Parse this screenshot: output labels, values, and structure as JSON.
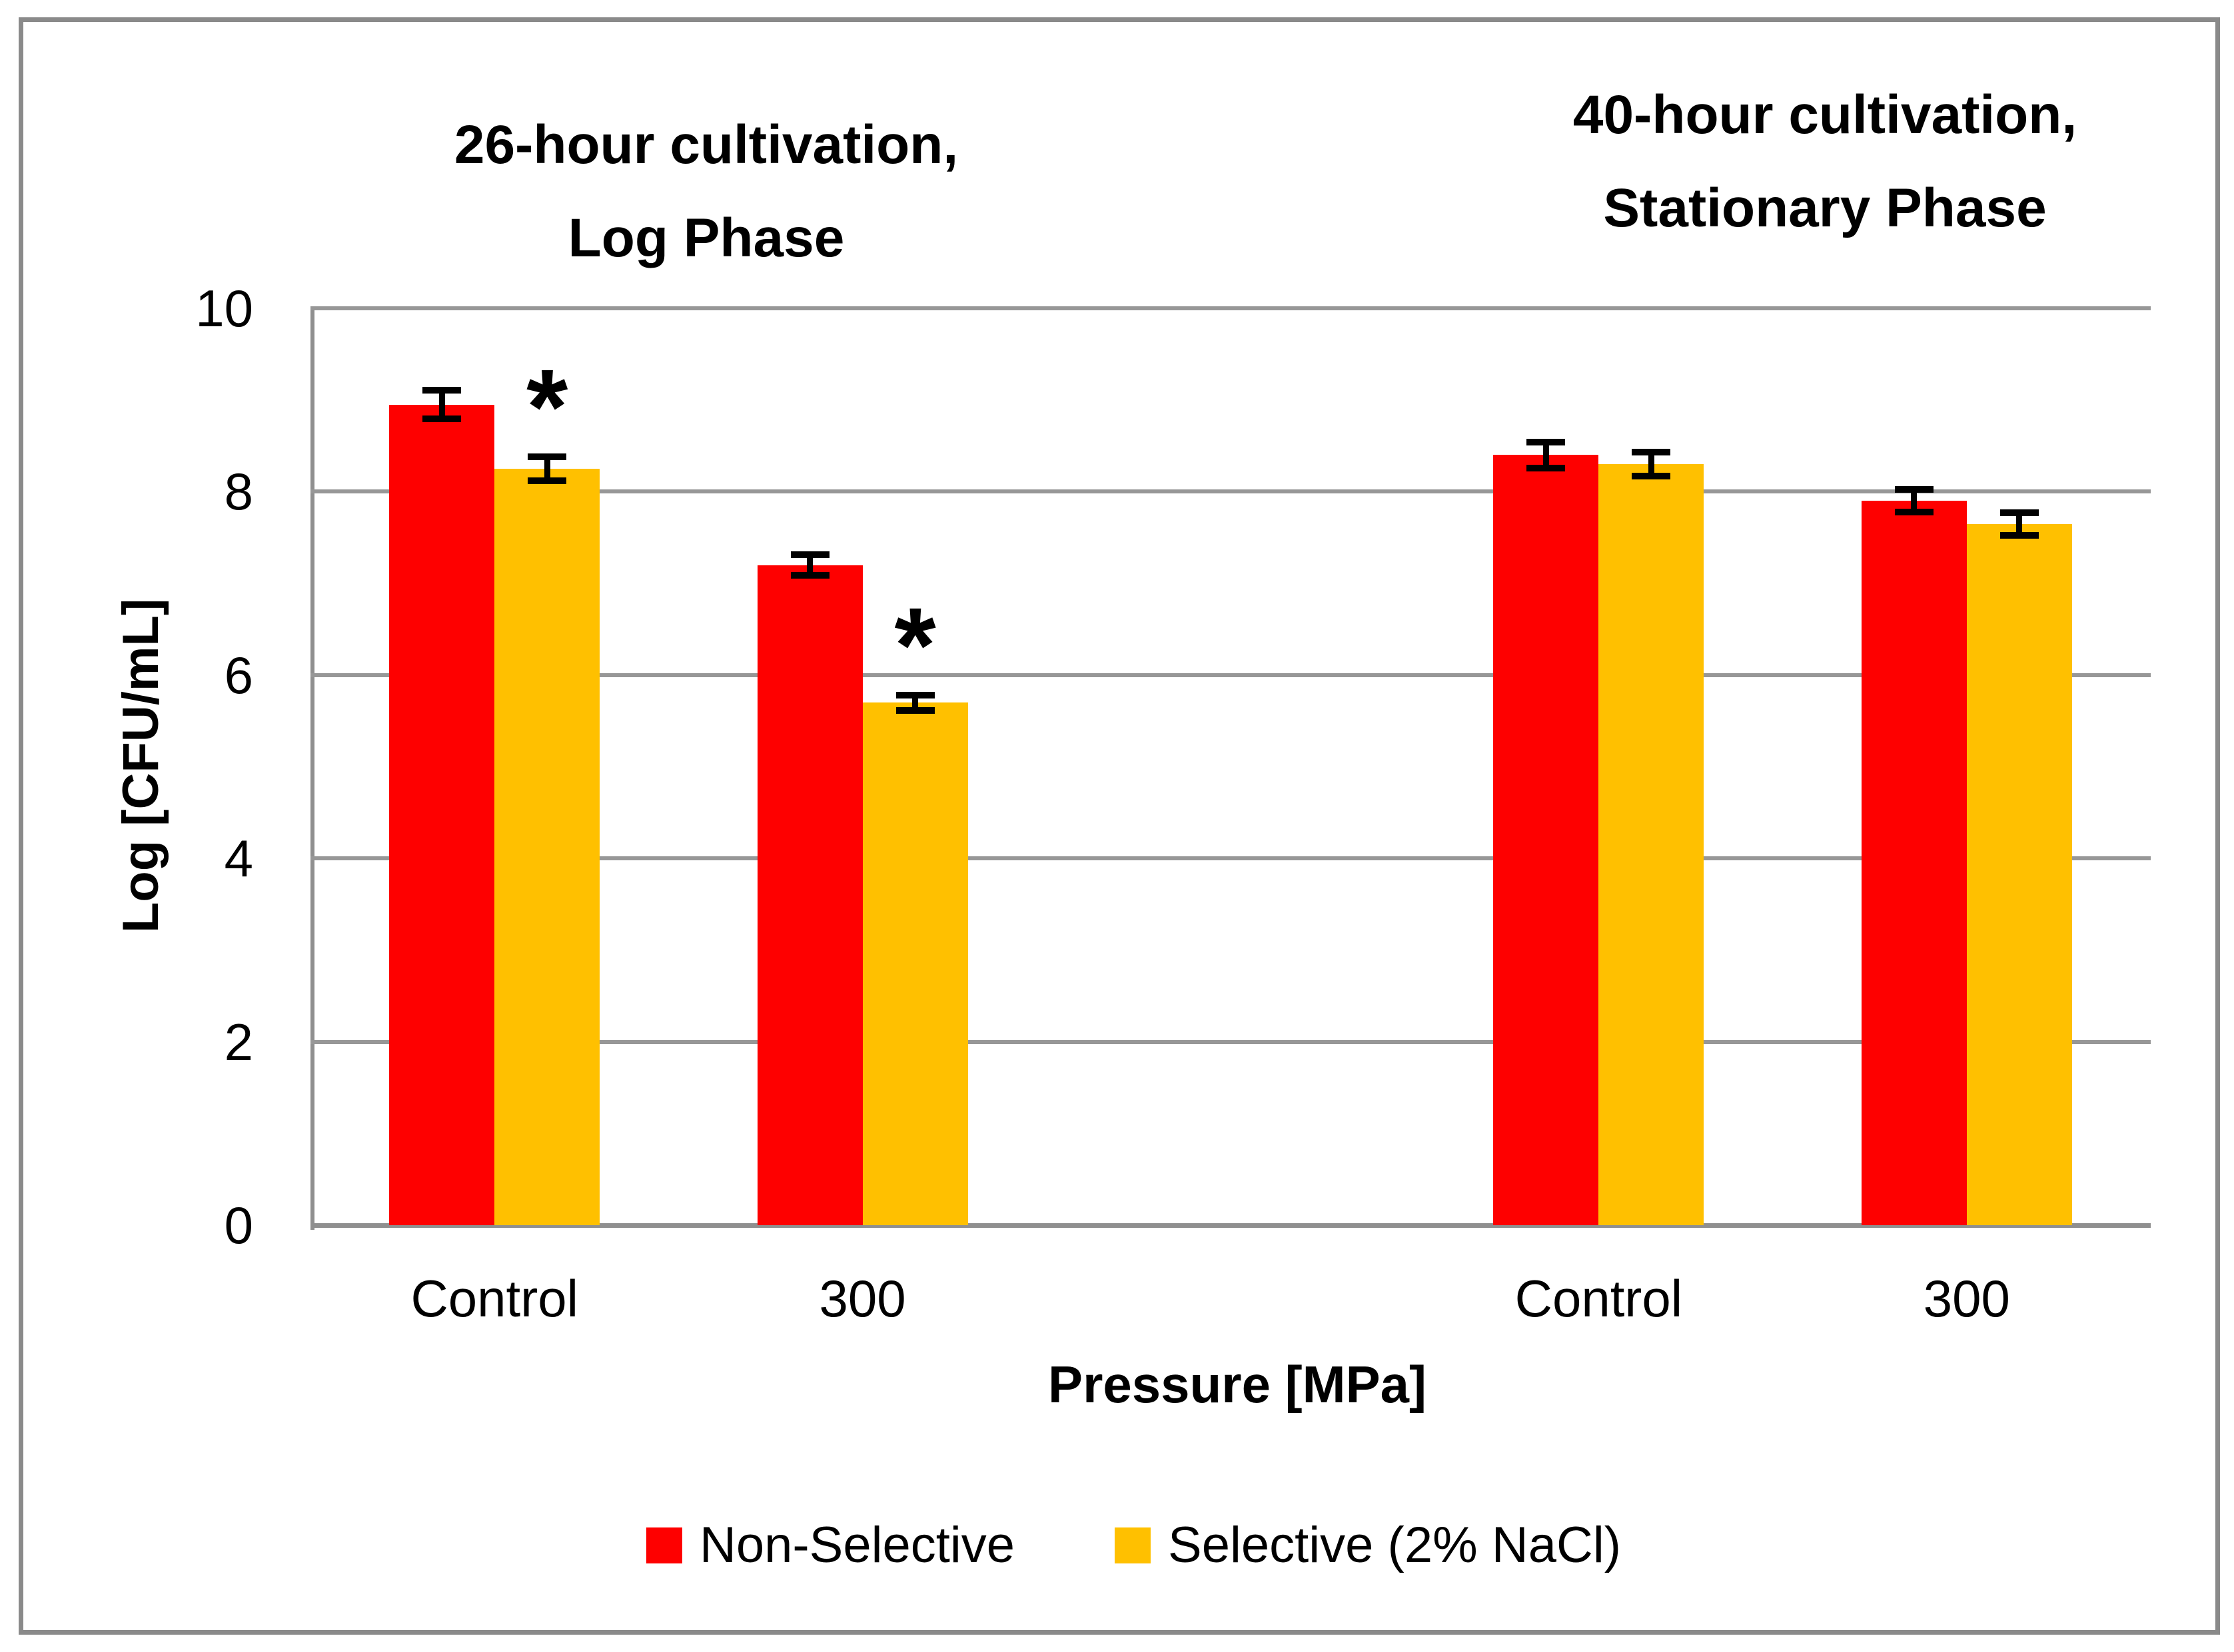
{
  "chart_data": {
    "type": "bar",
    "panels": [
      {
        "title_line1": "26-hour cultivation,",
        "title_line2": "Log Phase"
      },
      {
        "title_line1": "40-hour cultivation,",
        "title_line2": "Stationary Phase"
      }
    ],
    "ylabel": "Log [CFU/mL]",
    "xlabel": "Pressure [MPa]",
    "ylim": [
      0,
      10
    ],
    "yticks": [
      0,
      2,
      4,
      6,
      8,
      10
    ],
    "grid": "horizontal",
    "categories": [
      "Control",
      "300",
      "Control",
      "300"
    ],
    "series": [
      {
        "name": "Non-Selective",
        "color": "#FE0000",
        "values": [
          8.95,
          7.2,
          8.4,
          7.9
        ],
        "errors": [
          0.19,
          0.15,
          0.18,
          0.16
        ],
        "asterisks": [
          false,
          false,
          false,
          false
        ]
      },
      {
        "name": "Selective (2% NaCl)",
        "color": "#FFC000",
        "values": [
          8.25,
          5.7,
          8.3,
          7.65
        ],
        "errors": [
          0.17,
          0.12,
          0.17,
          0.16
        ],
        "asterisks": [
          true,
          true,
          false,
          false
        ]
      }
    ],
    "significance_marker": "*",
    "legend_position": "bottom"
  },
  "colors": {
    "gridline": "#979797",
    "axis_line": "#8F8F8F",
    "frame_border": "#8A8A8A",
    "error_bar": "#000000"
  }
}
